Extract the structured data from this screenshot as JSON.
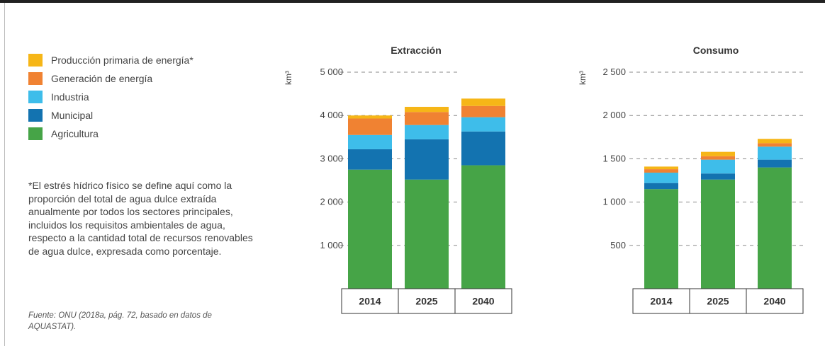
{
  "legend": [
    {
      "label": "Producción primaria de energía*",
      "color": "#F6B617"
    },
    {
      "label": "Generación de energía",
      "color": "#F08232"
    },
    {
      "label": "Industria",
      "color": "#3EBDEA"
    },
    {
      "label": "Municipal",
      "color": "#1373B0"
    },
    {
      "label": "Agricultura",
      "color": "#46A447"
    }
  ],
  "note": "*El estrés hídrico físico se define aquí como la proporción del total de agua dulce extraída anualmente por todos los sectores principales, incluidos los requisitos ambientales de agua, respecto a la cantidad total de recursos renovables de agua dulce, expresada como porcentaje.",
  "source": "Fuente: ONU (2018a, pág. 72, basado en datos de AQUASTAT).",
  "chart_data": [
    {
      "type": "bar",
      "stacked": true,
      "title": "Extracción",
      "ylabel": "km³",
      "ylim": [
        0,
        5000
      ],
      "yticks": [
        1000,
        2000,
        3000,
        4000,
        5000
      ],
      "ytick_labels": [
        "1 000",
        "2 000",
        "3 000",
        "4 000",
        "5 000"
      ],
      "grid": "dashed horizontal",
      "categories": [
        "2014",
        "2025",
        "2040"
      ],
      "series": [
        {
          "name": "Agricultura",
          "values": [
            2750,
            2520,
            2850
          ]
        },
        {
          "name": "Municipal",
          "values": [
            470,
            930,
            780
          ]
        },
        {
          "name": "Industria",
          "values": [
            330,
            330,
            330
          ]
        },
        {
          "name": "Generación de energía",
          "values": [
            380,
            300,
            260
          ]
        },
        {
          "name": "Producción primaria de energía*",
          "values": [
            70,
            120,
            170
          ]
        }
      ]
    },
    {
      "type": "bar",
      "stacked": true,
      "title": "Consumo",
      "ylabel": "km³",
      "ylim": [
        0,
        2500
      ],
      "yticks": [
        500,
        1000,
        1500,
        2000,
        2500
      ],
      "ytick_labels": [
        "500",
        "1 000",
        "1 500",
        "2 000",
        "2 500"
      ],
      "grid": "dashed horizontal",
      "categories": [
        "2014",
        "2025",
        "2040"
      ],
      "series": [
        {
          "name": "Agricultura",
          "values": [
            1150,
            1260,
            1400
          ]
        },
        {
          "name": "Municipal",
          "values": [
            70,
            70,
            90
          ]
        },
        {
          "name": "Industria",
          "values": [
            120,
            160,
            150
          ]
        },
        {
          "name": "Generación de energía",
          "values": [
            40,
            40,
            40
          ]
        },
        {
          "name": "Producción primaria de energía*",
          "values": [
            30,
            50,
            50
          ]
        }
      ]
    }
  ]
}
